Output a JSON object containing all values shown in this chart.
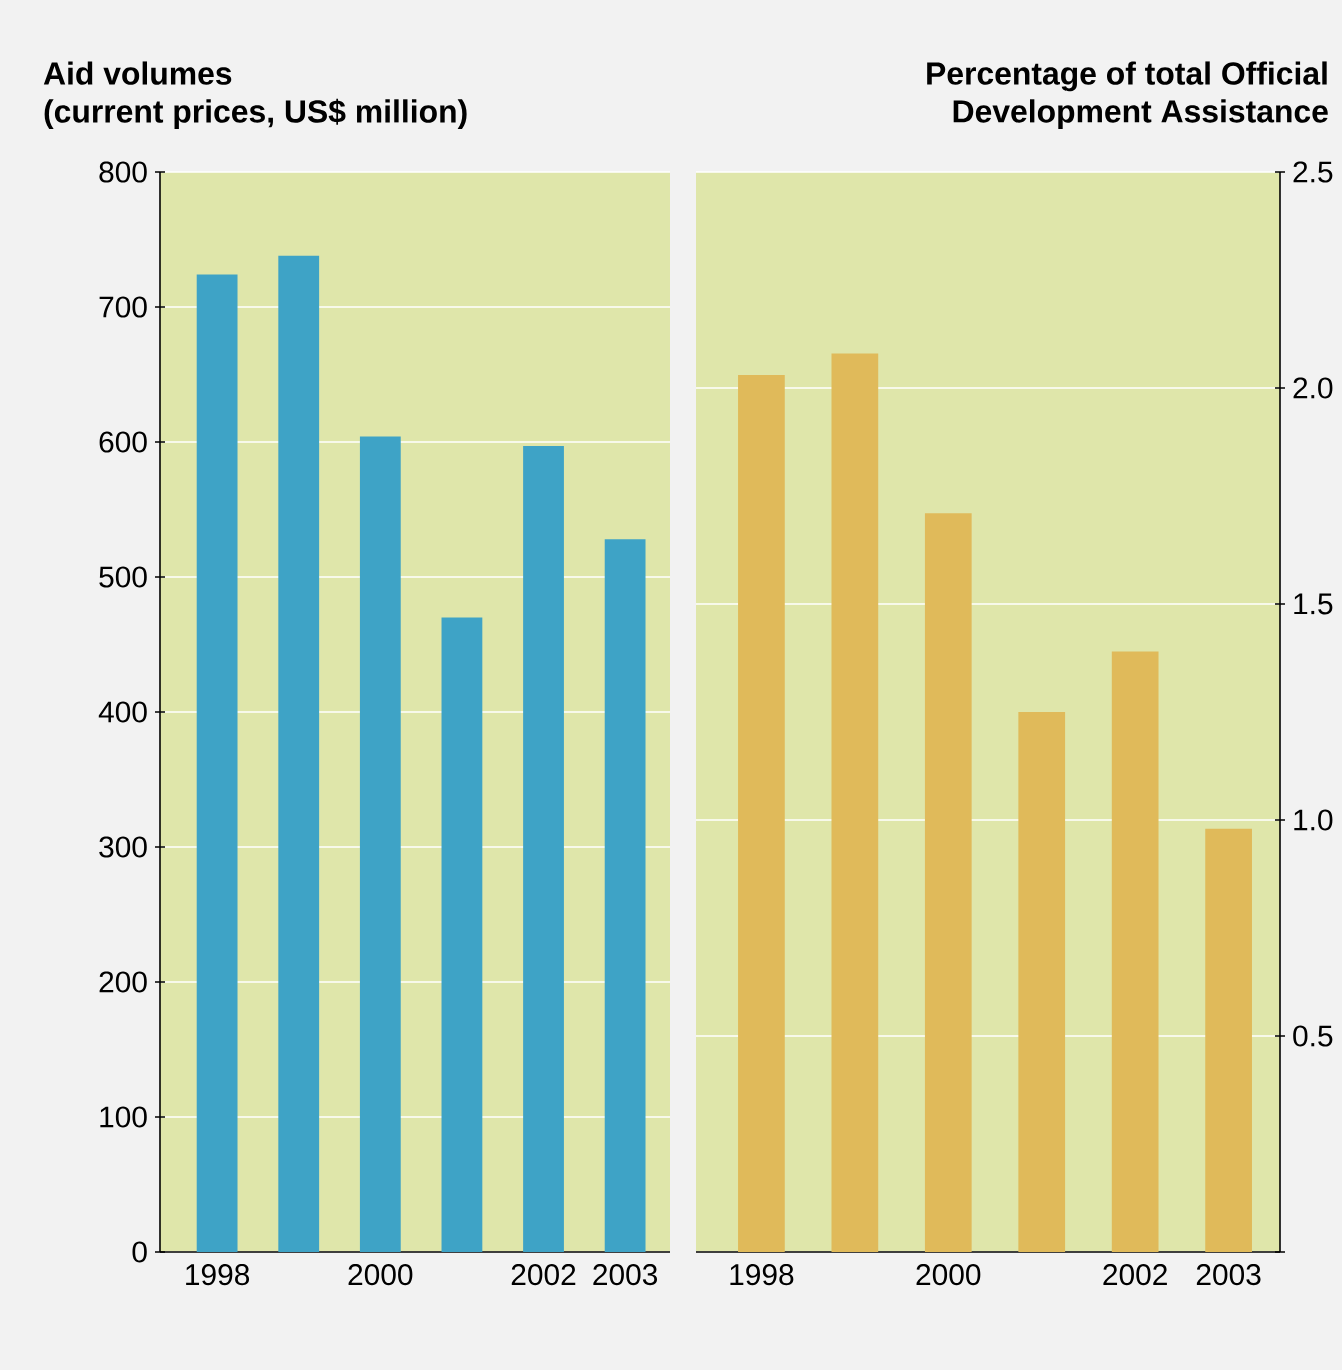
{
  "chart_data": [
    {
      "type": "bar",
      "title": "Aid volumes\n(current prices, US$ million)",
      "categories": [
        "1998",
        null,
        "2000",
        null,
        "2002",
        "2003"
      ],
      "values": [
        724,
        738,
        604,
        470,
        597,
        528
      ],
      "color": "#3ea3c6",
      "ylim": [
        0,
        800
      ],
      "yticks": [
        0,
        100,
        200,
        300,
        400,
        500,
        600,
        700,
        800
      ],
      "grid": "y"
    },
    {
      "type": "bar",
      "title": "Percentage of total Official\nDevelopment Assistance",
      "categories": [
        "1998",
        null,
        "2000",
        null,
        "2002",
        "2003"
      ],
      "values": [
        2.03,
        2.08,
        1.71,
        1.25,
        1.39,
        0.98
      ],
      "color": "#e0ba5a",
      "ylim": [
        0,
        2.5
      ],
      "yticks": [
        {
          "value": 0,
          "label": null
        },
        0.5,
        {
          "value": 1.0,
          "label": "1.0"
        },
        1.5,
        {
          "value": 2.0,
          "label": "2.0"
        },
        2.5
      ],
      "grid": "y"
    }
  ]
}
